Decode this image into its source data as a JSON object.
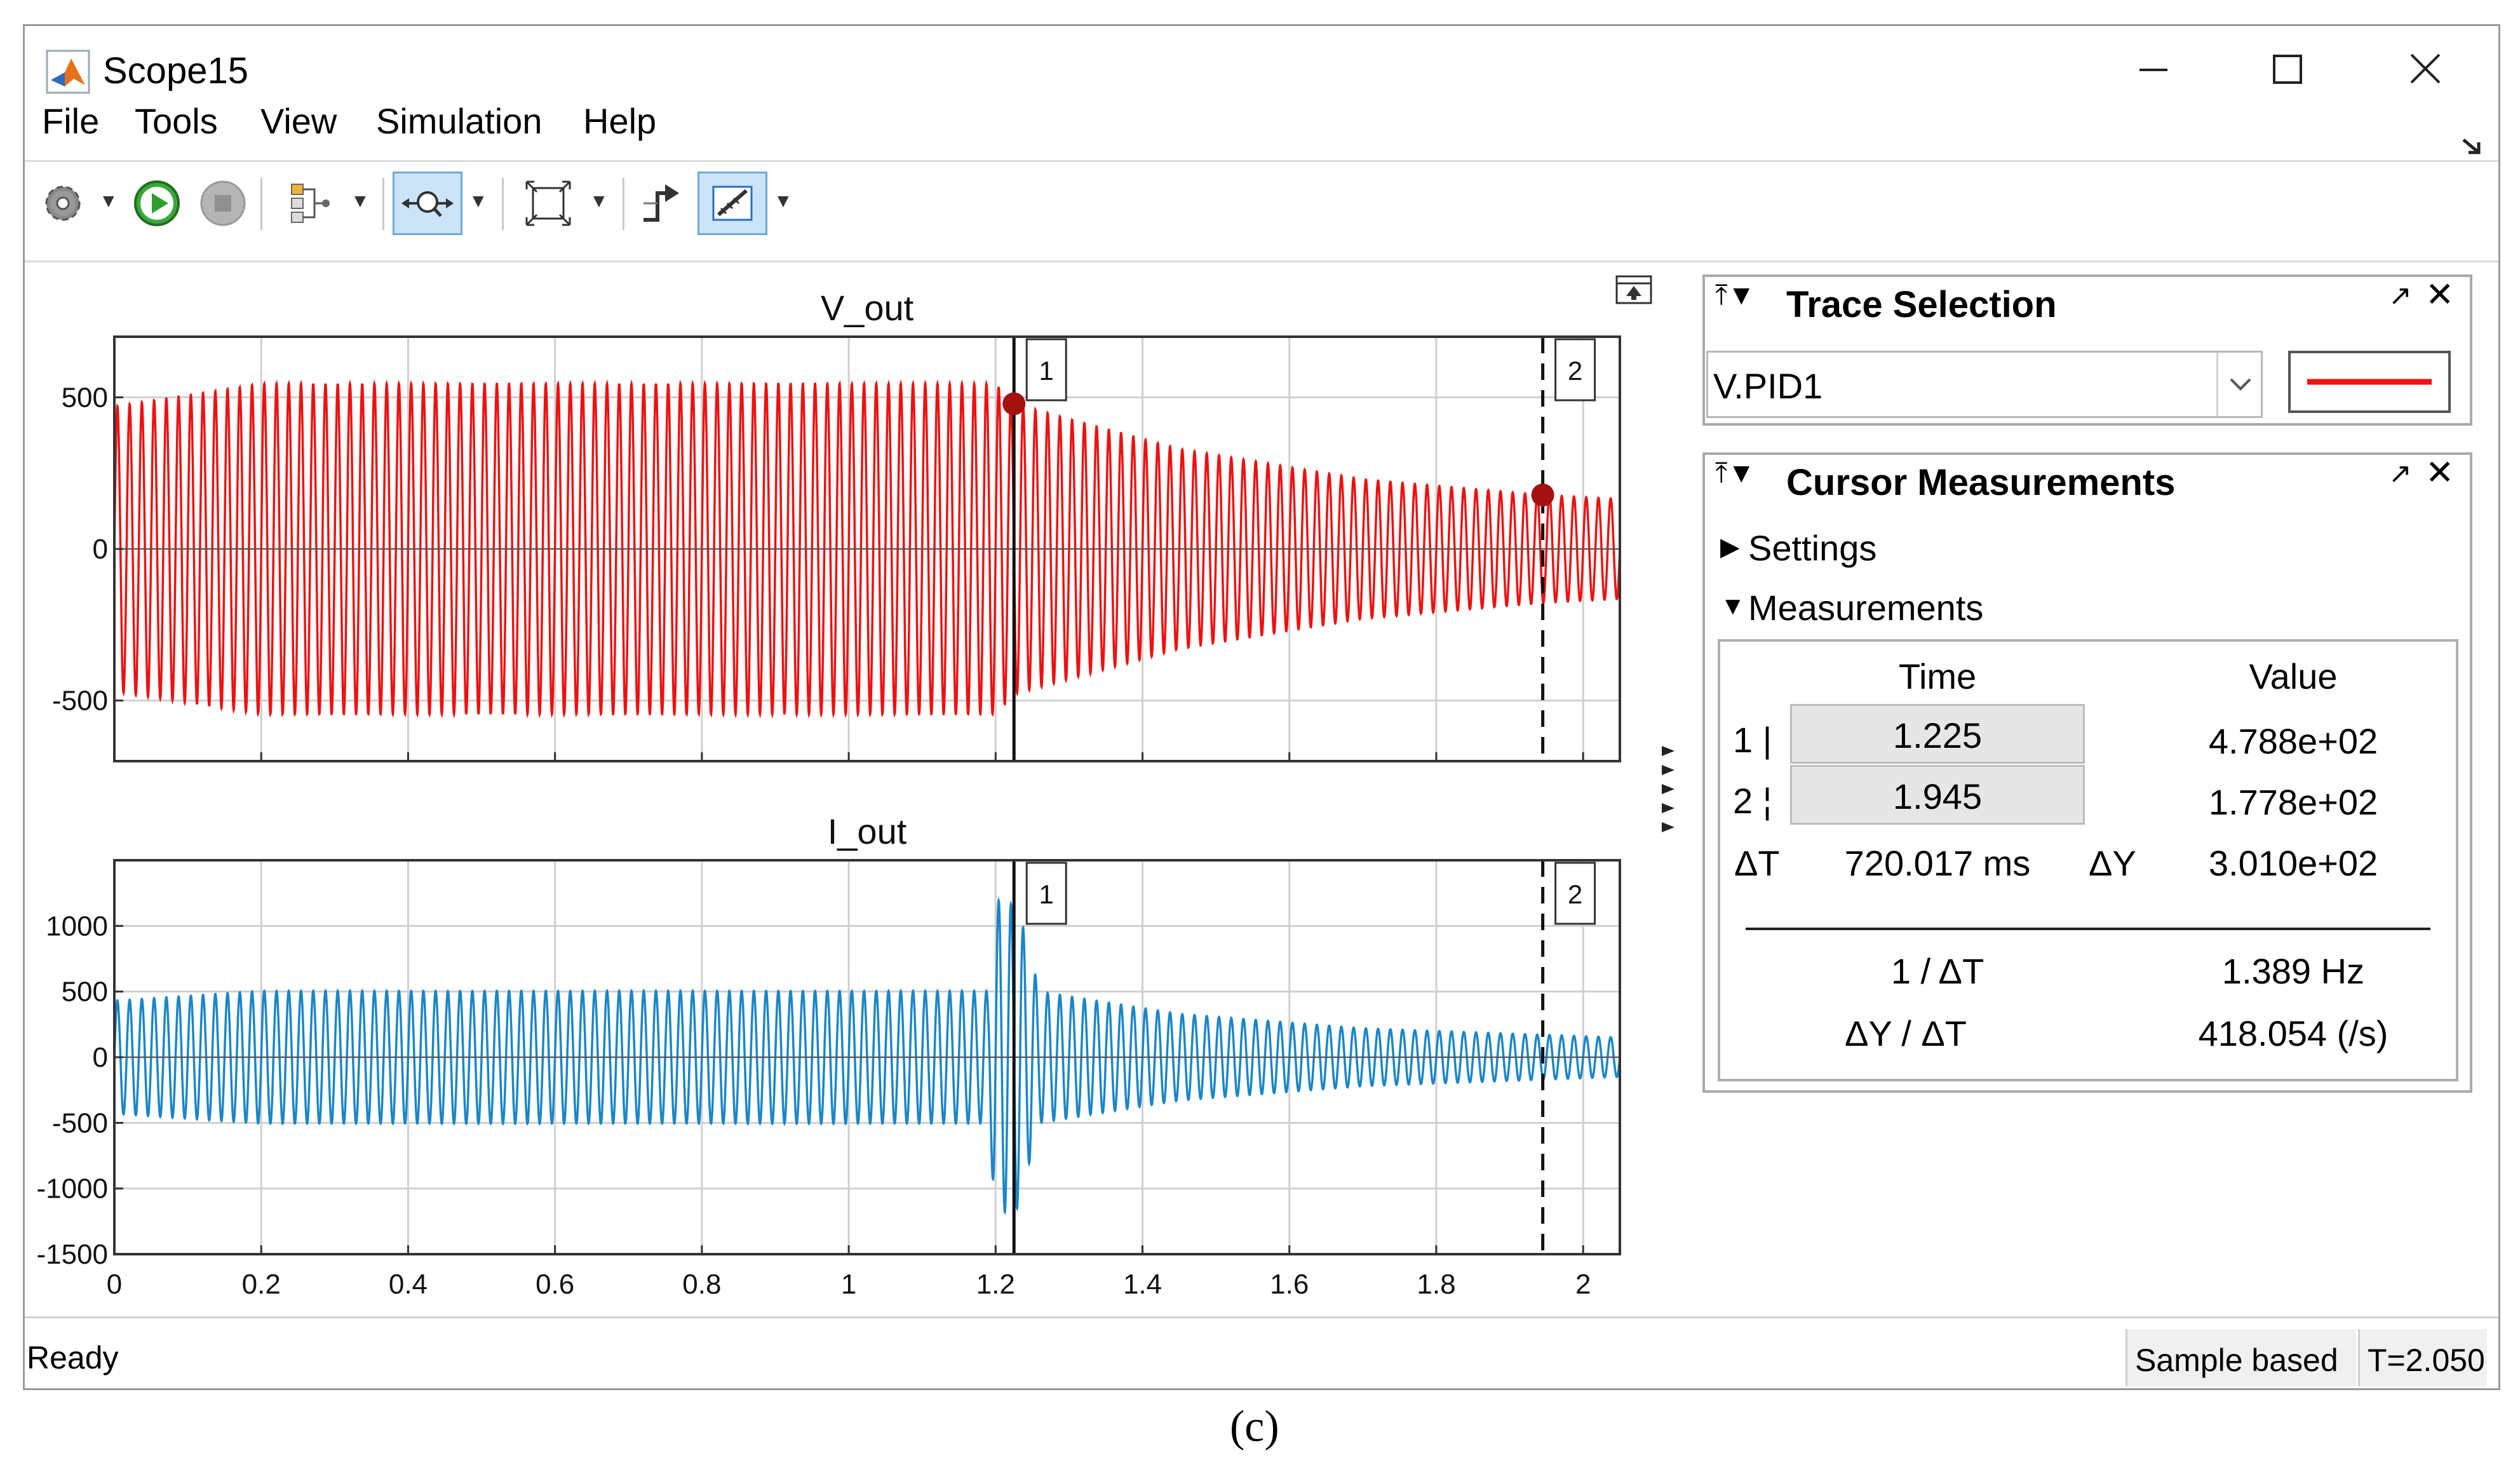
{
  "window": {
    "title": "Scope15",
    "icon": "matlab-logo-icon",
    "controls": [
      "minimize-icon",
      "maximize-icon",
      "close-icon"
    ]
  },
  "menu": {
    "items": [
      "File",
      "Tools",
      "View",
      "Simulation",
      "Help"
    ]
  },
  "toolbar": {
    "buttons": [
      "settings-gear-icon",
      "run-icon",
      "stop-icon",
      "signal-routing-icon",
      "zoom-x-icon",
      "scale-axes-icon",
      "trigger-icon",
      "cursor-measurements-icon"
    ]
  },
  "colors": {
    "v_trace": "#ee1111",
    "i_trace": "#1a86c8",
    "selection_bg": "#cce4f7"
  },
  "chart_data": [
    {
      "type": "line",
      "title": "V_out",
      "xlim": [
        0,
        2.05
      ],
      "ylim": [
        -700,
        700
      ],
      "yticks": [
        -500,
        0,
        500
      ],
      "xticks": [
        0,
        0.2,
        0.4,
        0.6,
        0.8,
        1,
        1.2,
        1.4,
        1.6,
        1.8,
        2
      ],
      "grid": true,
      "series": [
        {
          "color": "#ee1111",
          "frequency_hz": 60,
          "envelope": [
            [
              0,
              470
            ],
            [
              0.2,
              545
            ],
            [
              1.2,
              545
            ],
            [
              1.225,
              478.8
            ],
            [
              1.45,
              330
            ],
            [
              1.7,
              230
            ],
            [
              1.945,
              177.8
            ],
            [
              2.05,
              165
            ]
          ]
        }
      ],
      "cursors": [
        {
          "label": "1",
          "x": 1.225,
          "style": "solid",
          "marker_y": 478.8
        },
        {
          "label": "2",
          "x": 1.945,
          "style": "dashed",
          "marker_y": 177.8
        }
      ]
    },
    {
      "type": "line",
      "title": "I_out",
      "xlim": [
        0,
        2.05
      ],
      "ylim": [
        -1500,
        1500
      ],
      "yticks": [
        -1500,
        -1000,
        -500,
        0,
        500,
        1000
      ],
      "xticks": [
        0,
        0.2,
        0.4,
        0.6,
        0.8,
        1,
        1.2,
        1.4,
        1.6,
        1.8,
        2
      ],
      "xtick_labels": [
        "0",
        "0.2",
        "0.4",
        "0.6",
        "0.8",
        "1",
        "1.2",
        "1.4",
        "1.6",
        "1.8",
        "2"
      ],
      "grid": true,
      "series": [
        {
          "color": "#1a86c8",
          "frequency_hz": 60,
          "envelope": [
            [
              0,
              430
            ],
            [
              0.2,
              505
            ],
            [
              1.19,
              505
            ],
            [
              1.2,
              1200
            ],
            [
              1.23,
              1150
            ],
            [
              1.26,
              500
            ],
            [
              1.45,
              330
            ],
            [
              1.7,
              220
            ],
            [
              2.05,
              150
            ]
          ]
        }
      ],
      "cursors": [
        {
          "label": "1",
          "x": 1.225,
          "style": "solid"
        },
        {
          "label": "2",
          "x": 1.945,
          "style": "dashed"
        }
      ]
    }
  ],
  "trace_selection": {
    "title": "Trace Selection",
    "selected": "V.PID1",
    "line_color": "#ee1111"
  },
  "cursor_measurements": {
    "title": "Cursor Measurements",
    "settings_label": "Settings",
    "measurements_label": "Measurements",
    "time_header": "Time",
    "value_header": "Value",
    "row1_label": "1 |",
    "row1_time": "1.225",
    "row1_value": "4.788e+02",
    "row2_label": "2 ¦",
    "row2_time": "1.945",
    "row2_value": "1.778e+02",
    "dt_label": "ΔT",
    "dt_value": "720.017 ms",
    "dy_label": "ΔY",
    "dy_value": "3.010e+02",
    "inv_dt_label": "1 / ΔT",
    "inv_dt_value": "1.389 Hz",
    "dydt_label": "ΔY / ΔT",
    "dydt_value": "418.054 (/s)"
  },
  "status": {
    "ready": "Ready",
    "mode": "Sample based",
    "time": "T=2.050"
  },
  "caption": "(c)"
}
